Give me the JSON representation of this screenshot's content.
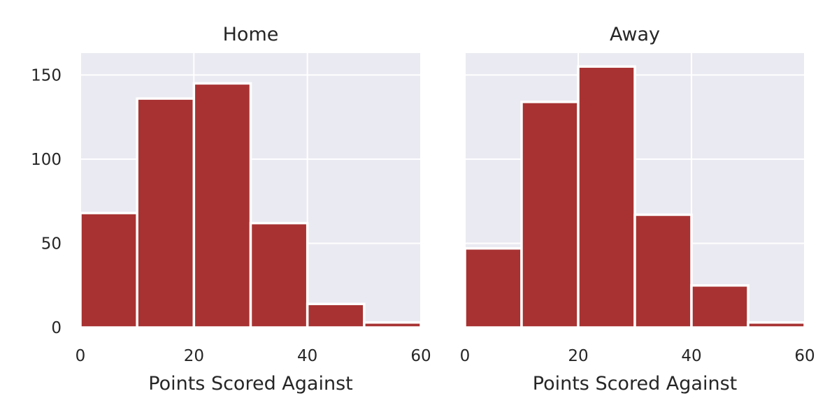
{
  "chart_data": [
    {
      "type": "bar",
      "title": "Home",
      "xlabel": "Points Scored Against",
      "ylabel": "",
      "xlim": [
        0,
        60
      ],
      "ylim": [
        0,
        163
      ],
      "xticks": [
        "0",
        "20",
        "40",
        "60"
      ],
      "yticks": [
        "0",
        "50",
        "100",
        "150"
      ],
      "bins": [
        [
          0,
          10
        ],
        [
          10,
          20
        ],
        [
          20,
          30
        ],
        [
          30,
          40
        ],
        [
          40,
          50
        ],
        [
          50,
          60
        ]
      ],
      "values": [
        68,
        136,
        145,
        62,
        14,
        3
      ],
      "grid": true,
      "color": "#a83232"
    },
    {
      "type": "bar",
      "title": "Away",
      "xlabel": "Points Scored Against",
      "ylabel": "",
      "xlim": [
        0,
        60
      ],
      "ylim": [
        0,
        163
      ],
      "xticks": [
        "0",
        "20",
        "40",
        "60"
      ],
      "yticks": [],
      "bins": [
        [
          0,
          10
        ],
        [
          10,
          20
        ],
        [
          20,
          30
        ],
        [
          30,
          40
        ],
        [
          40,
          50
        ],
        [
          50,
          60
        ]
      ],
      "values": [
        47,
        134,
        155,
        67,
        25,
        3
      ],
      "grid": true,
      "color": "#a83232"
    }
  ],
  "colors": {
    "panel_background": "#eaeaf2",
    "grid": "#ffffff",
    "bar": "#a83232",
    "bar_edge": "#ffffff",
    "text": "#262626"
  }
}
